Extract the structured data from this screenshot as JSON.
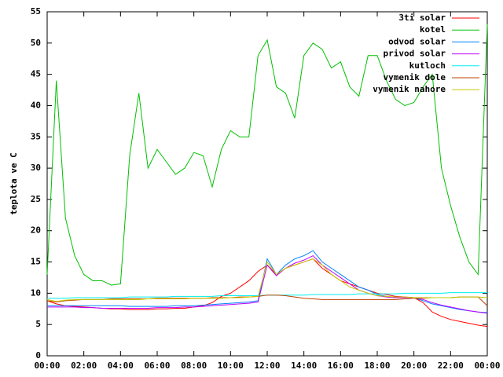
{
  "chart_data": {
    "type": "line",
    "y_label": "teplota ve C",
    "x": [
      0,
      0.5,
      1,
      1.5,
      2,
      2.5,
      3,
      3.5,
      4,
      4.5,
      5,
      5.5,
      6,
      6.5,
      7,
      7.5,
      8,
      8.5,
      9,
      9.5,
      10,
      10.5,
      11,
      11.5,
      12,
      12.5,
      13,
      13.5,
      14,
      14.5,
      15,
      15.5,
      16,
      16.5,
      17,
      17.5,
      18,
      18.5,
      19,
      19.5,
      20,
      20.5,
      21,
      21.5,
      22,
      22.5,
      23,
      23.5,
      24
    ],
    "xlim": [
      0,
      24
    ],
    "xticks": [
      {
        "value": 0,
        "label": "00:00"
      },
      {
        "value": 2,
        "label": "02:00"
      },
      {
        "value": 4,
        "label": "04:00"
      },
      {
        "value": 6,
        "label": "06:00"
      },
      {
        "value": 8,
        "label": "08:00"
      },
      {
        "value": 10,
        "label": "10:00"
      },
      {
        "value": 12,
        "label": "12:00"
      },
      {
        "value": 14,
        "label": "14:00"
      },
      {
        "value": 16,
        "label": "16:00"
      },
      {
        "value": 18,
        "label": "18:00"
      },
      {
        "value": 20,
        "label": "20:00"
      },
      {
        "value": 22,
        "label": "22:00"
      },
      {
        "value": 24,
        "label": "00:00"
      }
    ],
    "ylim": [
      0,
      55
    ],
    "yticks": [
      0,
      5,
      10,
      15,
      20,
      25,
      30,
      35,
      40,
      45,
      50,
      55
    ],
    "legend": "top-right",
    "series": [
      {
        "name": "3ti solar",
        "color": "#ff0000",
        "values": [
          8.8,
          8.3,
          8,
          7.9,
          7.8,
          7.7,
          7.6,
          7.5,
          7.5,
          7.4,
          7.4,
          7.4,
          7.5,
          7.5,
          7.6,
          7.6,
          7.8,
          8,
          8.5,
          9.5,
          10,
          11,
          12,
          13.5,
          14.5,
          13,
          14,
          14.5,
          15,
          15.5,
          14,
          13,
          12,
          11.5,
          11,
          10.5,
          10,
          9.8,
          9.5,
          9.4,
          9.3,
          8.5,
          7,
          6.3,
          5.8,
          5.5,
          5.2,
          4.9,
          4.7
        ]
      },
      {
        "name": "kotel",
        "color": "#00c000",
        "values": [
          13,
          44,
          22,
          16,
          13,
          12,
          12,
          11.3,
          11.5,
          32,
          42,
          30,
          33,
          31,
          29,
          30,
          32.5,
          32,
          27,
          33,
          36,
          35,
          35,
          48,
          50.5,
          43,
          42,
          38,
          48,
          50,
          49,
          46,
          47,
          43,
          41.5,
          48,
          48,
          44,
          41,
          40,
          40.5,
          43,
          45,
          30,
          24,
          19,
          15,
          13,
          53
        ]
      },
      {
        "name": "odvod solar",
        "color": "#0080ff",
        "values": [
          8,
          8,
          8,
          8,
          8,
          8,
          8,
          8,
          8,
          7.9,
          7.9,
          7.9,
          7.9,
          7.9,
          8,
          8,
          8,
          8.1,
          8.2,
          8.3,
          8.4,
          8.5,
          8.6,
          8.8,
          15.5,
          13,
          14.5,
          15.5,
          16,
          16.8,
          15,
          14,
          13,
          12,
          11,
          10.5,
          9.8,
          9.5,
          9.3,
          9.3,
          9.3,
          8.8,
          8.3,
          8,
          7.7,
          7.4,
          7.2,
          7,
          6.9
        ]
      },
      {
        "name": "privod solar",
        "color": "#c000ff",
        "values": [
          7.8,
          7.8,
          7.8,
          7.8,
          7.7,
          7.7,
          7.6,
          7.6,
          7.6,
          7.6,
          7.6,
          7.6,
          7.7,
          7.7,
          7.7,
          7.8,
          7.8,
          7.9,
          8,
          8.1,
          8.2,
          8.3,
          8.4,
          8.6,
          14.5,
          12.8,
          14,
          14.8,
          15.3,
          16,
          14.5,
          13.5,
          12.5,
          11.5,
          10.5,
          10,
          9.6,
          9.4,
          9.3,
          9.3,
          9.3,
          9,
          8.5,
          8.1,
          7.8,
          7.5,
          7.2,
          7,
          6.8
        ]
      },
      {
        "name": "kutloch",
        "color": "#00eeee",
        "values": [
          9.2,
          9.2,
          9.2,
          9.3,
          9.3,
          9.3,
          9.3,
          9.3,
          9.3,
          9.4,
          9.4,
          9.4,
          9.4,
          9.4,
          9.5,
          9.5,
          9.5,
          9.5,
          9.5,
          9.6,
          9.6,
          9.6,
          9.6,
          9.6,
          9.7,
          9.7,
          9.7,
          9.7,
          9.7,
          9.8,
          9.8,
          9.8,
          9.8,
          9.8,
          9.9,
          9.9,
          9.9,
          9.9,
          9.9,
          10,
          10,
          10,
          10,
          10,
          10.1,
          10.1,
          10.1,
          10.1,
          10.1
        ]
      },
      {
        "name": "vymenik dole",
        "color": "#c04000",
        "values": [
          8.8,
          8.6,
          8.8,
          8.9,
          9,
          9,
          9,
          9.1,
          9.1,
          9.1,
          9.1,
          9.1,
          9.2,
          9.2,
          9.2,
          9.2,
          9.2,
          9.2,
          9.3,
          9.3,
          9.3,
          9.4,
          9.4,
          9.5,
          9.7,
          9.7,
          9.6,
          9.4,
          9.2,
          9.1,
          9,
          9,
          9,
          9,
          9,
          9,
          9,
          9,
          9,
          9.1,
          9.2,
          9.2,
          9.3,
          9.3,
          9.3,
          9.4,
          9.4,
          9.4,
          8
        ]
      },
      {
        "name": "vymenik nahore",
        "color": "#c8c800",
        "values": [
          9,
          8.7,
          8.9,
          9,
          9,
          9,
          9,
          9,
          9,
          9,
          9,
          9.1,
          9.1,
          9.1,
          9.1,
          9.1,
          9.2,
          9.2,
          9.2,
          9.2,
          9.3,
          9.3,
          9.4,
          9.5,
          15,
          13,
          14,
          14.5,
          15,
          15.5,
          14.5,
          13,
          12,
          11,
          10.5,
          10,
          9.6,
          9.5,
          9.4,
          9.4,
          9.3,
          9.3,
          9.3,
          9.3,
          9.3,
          9.4,
          9.4,
          9.4,
          9.3
        ]
      }
    ]
  }
}
